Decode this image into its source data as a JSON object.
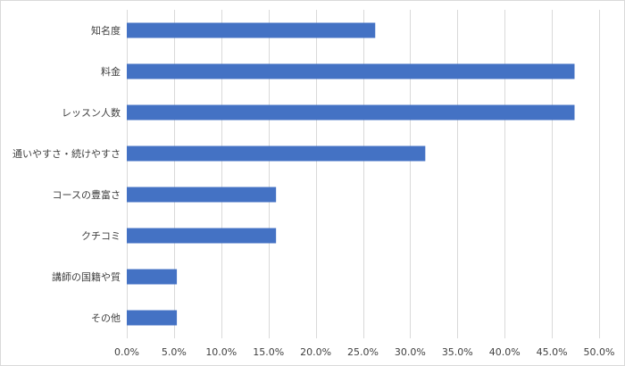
{
  "chart_data": {
    "type": "bar",
    "orientation": "horizontal",
    "categories": [
      "知名度",
      "料金",
      "レッスン人数",
      "通いやすさ・続けやすさ",
      "コースの豊富さ",
      "クチコミ",
      "講師の国籍や質",
      "その他"
    ],
    "values": [
      26.3,
      47.4,
      47.4,
      31.6,
      15.8,
      15.8,
      5.3,
      5.3
    ],
    "xlim": [
      0,
      50
    ],
    "xticks": [
      0,
      5,
      10,
      15,
      20,
      25,
      30,
      35,
      40,
      45,
      50
    ],
    "tick_labels": [
      "0.0%",
      "5.0%",
      "10.0%",
      "15.0%",
      "20.0%",
      "25.0%",
      "30.0%",
      "35.0%",
      "40.0%",
      "45.0%",
      "50.0%"
    ],
    "grid": true,
    "legend": "none",
    "bar_color": "#4472c4",
    "grid_color": "#d9d9d9"
  }
}
